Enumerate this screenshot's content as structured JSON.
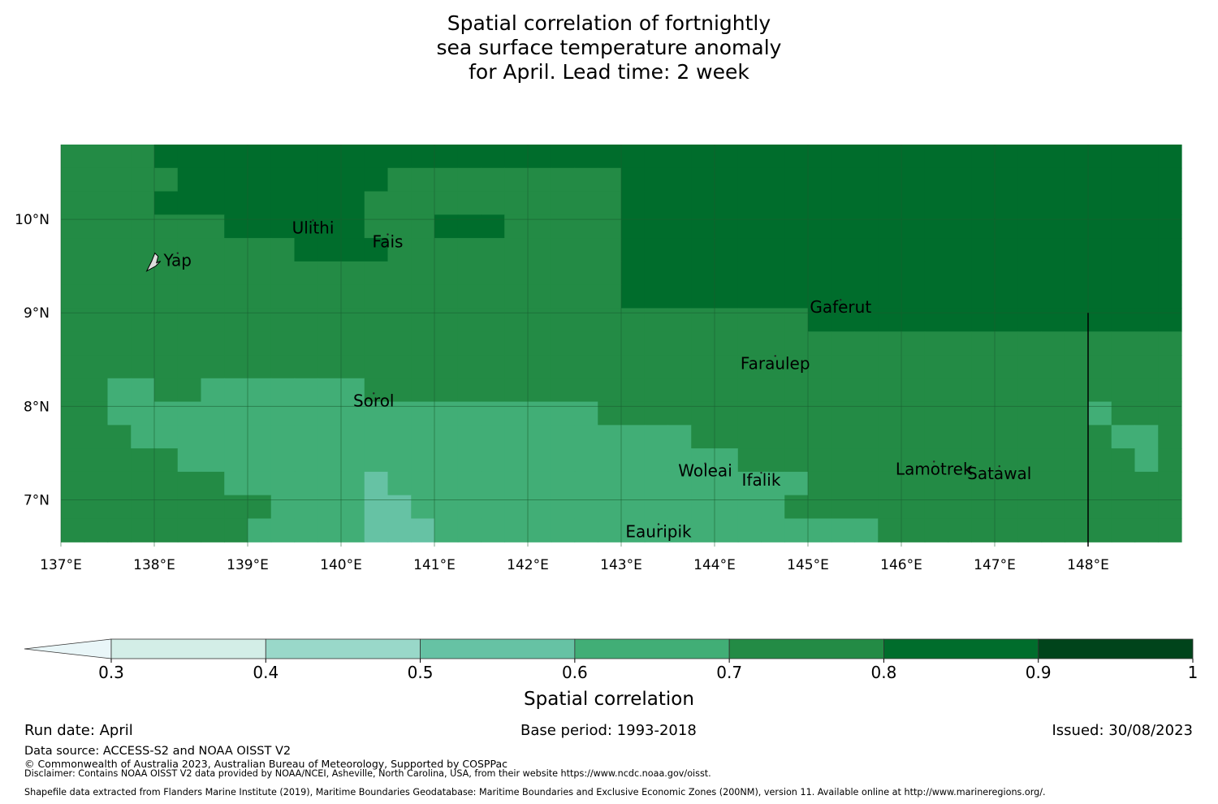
{
  "title": {
    "lines": [
      "Spatial correlation of fortnightly",
      "sea surface temperature anomaly",
      "for April. Lead time: 2 week"
    ]
  },
  "map": {
    "lon_range": [
      137.0,
      149.0
    ],
    "lat_range": [
      6.5,
      10.8
    ],
    "grid": "on",
    "x_ticks": [
      {
        "value": 137,
        "label": "137°E"
      },
      {
        "value": 138,
        "label": "138°E"
      },
      {
        "value": 139,
        "label": "139°E"
      },
      {
        "value": 140,
        "label": "140°E"
      },
      {
        "value": 141,
        "label": "141°E"
      },
      {
        "value": 142,
        "label": "142°E"
      },
      {
        "value": 143,
        "label": "143°E"
      },
      {
        "value": 144,
        "label": "144°E"
      },
      {
        "value": 145,
        "label": "145°E"
      },
      {
        "value": 146,
        "label": "146°E"
      },
      {
        "value": 147,
        "label": "147°E"
      },
      {
        "value": 148,
        "label": "148°E"
      }
    ],
    "y_ticks": [
      {
        "value": 10,
        "label": "10°N"
      },
      {
        "value": 9,
        "label": "9°N"
      },
      {
        "value": 8,
        "label": "8°N"
      },
      {
        "value": 7,
        "label": "7°N"
      }
    ],
    "islands": [
      {
        "name": "Yap",
        "lon": 138.25,
        "lat": 9.5
      },
      {
        "name": "Ulithi",
        "lon": 139.7,
        "lat": 9.85
      },
      {
        "name": "Fais",
        "lon": 140.5,
        "lat": 9.7
      },
      {
        "name": "Gaferut",
        "lon": 145.35,
        "lat": 9.0
      },
      {
        "name": "Faraulep",
        "lon": 144.65,
        "lat": 8.4
      },
      {
        "name": "Sorol",
        "lon": 140.35,
        "lat": 8.0
      },
      {
        "name": "Woleai",
        "lon": 143.9,
        "lat": 7.25
      },
      {
        "name": "Ifalik",
        "lon": 144.5,
        "lat": 7.15
      },
      {
        "name": "Lamotrek",
        "lon": 146.35,
        "lat": 7.27
      },
      {
        "name": "Satawal",
        "lon": 147.05,
        "lat": 7.22
      },
      {
        "name": "Eauripik",
        "lon": 143.4,
        "lat": 6.6
      }
    ],
    "boundary_line_lon": 148.0,
    "boundary_line_lat_range": [
      6.5,
      9.0
    ]
  },
  "chart_data": {
    "type": "heatmap",
    "description_units": "spatial correlation",
    "grid_cell_deg": 0.25,
    "lon_start": 137.0,
    "lat_top": 10.8,
    "ncols": 48,
    "nrows": 17,
    "bin_edges": [
      0.3,
      0.4,
      0.5,
      0.6,
      0.7,
      0.8,
      0.9,
      1.0
    ],
    "bin_colors": [
      "#d3eee7",
      "#99d8c9",
      "#66c2a4",
      "#41ae76",
      "#238b45",
      "#006d2c",
      "#00441b"
    ],
    "under_color": "#e9f6f8",
    "values_by_row_top_to_bottom": [
      [
        0.75,
        0.75,
        0.75,
        0.75,
        0.85,
        0.85,
        0.85,
        0.85,
        0.85,
        0.85,
        0.85,
        0.85,
        0.85,
        0.85,
        0.85,
        0.85,
        0.85,
        0.85,
        0.85,
        0.85,
        0.85,
        0.85,
        0.85,
        0.85,
        0.85,
        0.85,
        0.85,
        0.85,
        0.85,
        0.85,
        0.85,
        0.85,
        0.85,
        0.85,
        0.85,
        0.85,
        0.85,
        0.85,
        0.85,
        0.85,
        0.85,
        0.85,
        0.85,
        0.85,
        0.85,
        0.85,
        0.85,
        0.85
      ],
      [
        0.75,
        0.75,
        0.75,
        0.75,
        0.75,
        0.85,
        0.85,
        0.85,
        0.85,
        0.85,
        0.85,
        0.85,
        0.85,
        0.85,
        0.75,
        0.75,
        0.75,
        0.75,
        0.75,
        0.75,
        0.75,
        0.75,
        0.75,
        0.75,
        0.85,
        0.85,
        0.85,
        0.85,
        0.85,
        0.85,
        0.85,
        0.85,
        0.85,
        0.85,
        0.85,
        0.85,
        0.85,
        0.85,
        0.85,
        0.85,
        0.85,
        0.85,
        0.85,
        0.85,
        0.85,
        0.85,
        0.85,
        0.85
      ],
      [
        0.75,
        0.75,
        0.75,
        0.75,
        0.85,
        0.85,
        0.85,
        0.85,
        0.85,
        0.85,
        0.85,
        0.85,
        0.85,
        0.75,
        0.75,
        0.75,
        0.75,
        0.75,
        0.75,
        0.75,
        0.75,
        0.75,
        0.75,
        0.75,
        0.85,
        0.85,
        0.85,
        0.85,
        0.85,
        0.85,
        0.85,
        0.85,
        0.85,
        0.85,
        0.85,
        0.85,
        0.85,
        0.85,
        0.85,
        0.85,
        0.85,
        0.85,
        0.85,
        0.85,
        0.85,
        0.85,
        0.85,
        0.85
      ],
      [
        0.75,
        0.75,
        0.75,
        0.75,
        0.75,
        0.75,
        0.75,
        0.75,
        0.75,
        0.75,
        0.75,
        0.75,
        0.75,
        0.75,
        0.75,
        0.75,
        0.75,
        0.75,
        0.75,
        0.75,
        0.75,
        0.75,
        0.75,
        0.75,
        0.85,
        0.85,
        0.85,
        0.85,
        0.85,
        0.85,
        0.85,
        0.85,
        0.85,
        0.85,
        0.85,
        0.85,
        0.85,
        0.85,
        0.85,
        0.85,
        0.85,
        0.85,
        0.85,
        0.85,
        0.85,
        0.85,
        0.85,
        0.85
      ],
      [
        0.75,
        0.75,
        0.75,
        0.75,
        0.75,
        0.75,
        0.75,
        0.75,
        0.75,
        0.75,
        0.75,
        0.75,
        0.75,
        0.75,
        0.75,
        0.75,
        0.75,
        0.75,
        0.75,
        0.75,
        0.75,
        0.75,
        0.75,
        0.75,
        0.85,
        0.85,
        0.85,
        0.85,
        0.85,
        0.85,
        0.85,
        0.85,
        0.85,
        0.85,
        0.85,
        0.85,
        0.85,
        0.85,
        0.85,
        0.85,
        0.85,
        0.85,
        0.85,
        0.85,
        0.85,
        0.85,
        0.85,
        0.85
      ],
      [
        0.75,
        0.75,
        0.75,
        0.75,
        0.75,
        0.75,
        0.75,
        0.75,
        0.75,
        0.75,
        0.75,
        0.75,
        0.75,
        0.75,
        0.75,
        0.75,
        0.75,
        0.75,
        0.75,
        0.75,
        0.75,
        0.75,
        0.75,
        0.75,
        0.85,
        0.85,
        0.85,
        0.85,
        0.85,
        0.85,
        0.85,
        0.85,
        0.85,
        0.85,
        0.85,
        0.85,
        0.85,
        0.85,
        0.85,
        0.85,
        0.85,
        0.85,
        0.85,
        0.85,
        0.85,
        0.85,
        0.85,
        0.85
      ],
      [
        0.75,
        0.75,
        0.75,
        0.75,
        0.75,
        0.75,
        0.75,
        0.75,
        0.75,
        0.75,
        0.75,
        0.75,
        0.75,
        0.75,
        0.75,
        0.75,
        0.75,
        0.75,
        0.75,
        0.75,
        0.75,
        0.75,
        0.75,
        0.75,
        0.85,
        0.85,
        0.85,
        0.85,
        0.85,
        0.85,
        0.85,
        0.85,
        0.85,
        0.85,
        0.85,
        0.85,
        0.85,
        0.85,
        0.85,
        0.85,
        0.85,
        0.85,
        0.85,
        0.85,
        0.85,
        0.85,
        0.85,
        0.85
      ],
      [
        0.75,
        0.75,
        0.75,
        0.75,
        0.75,
        0.75,
        0.75,
        0.75,
        0.75,
        0.75,
        0.75,
        0.75,
        0.75,
        0.75,
        0.75,
        0.75,
        0.75,
        0.75,
        0.75,
        0.75,
        0.75,
        0.75,
        0.75,
        0.75,
        0.75,
        0.75,
        0.75,
        0.75,
        0.75,
        0.75,
        0.75,
        0.75,
        0.85,
        0.85,
        0.85,
        0.85,
        0.85,
        0.85,
        0.85,
        0.85,
        0.85,
        0.85,
        0.85,
        0.85,
        0.85,
        0.85,
        0.85,
        0.85
      ],
      [
        0.75,
        0.75,
        0.75,
        0.75,
        0.75,
        0.75,
        0.75,
        0.75,
        0.75,
        0.75,
        0.75,
        0.75,
        0.75,
        0.75,
        0.75,
        0.75,
        0.75,
        0.75,
        0.75,
        0.75,
        0.75,
        0.75,
        0.75,
        0.75,
        0.75,
        0.75,
        0.75,
        0.75,
        0.75,
        0.75,
        0.75,
        0.75,
        0.75,
        0.75,
        0.75,
        0.75,
        0.75,
        0.75,
        0.75,
        0.75,
        0.75,
        0.75,
        0.75,
        0.75,
        0.75,
        0.75,
        0.75,
        0.75
      ],
      [
        0.75,
        0.75,
        0.75,
        0.75,
        0.75,
        0.75,
        0.75,
        0.75,
        0.75,
        0.75,
        0.75,
        0.75,
        0.75,
        0.75,
        0.75,
        0.75,
        0.75,
        0.75,
        0.75,
        0.75,
        0.75,
        0.75,
        0.75,
        0.75,
        0.75,
        0.75,
        0.75,
        0.75,
        0.75,
        0.75,
        0.75,
        0.75,
        0.75,
        0.75,
        0.75,
        0.75,
        0.75,
        0.75,
        0.75,
        0.75,
        0.75,
        0.75,
        0.75,
        0.75,
        0.75,
        0.75,
        0.75,
        0.75
      ],
      [
        0.75,
        0.75,
        0.65,
        0.65,
        0.75,
        0.75,
        0.65,
        0.65,
        0.65,
        0.65,
        0.65,
        0.65,
        0.65,
        0.75,
        0.75,
        0.75,
        0.75,
        0.75,
        0.75,
        0.75,
        0.75,
        0.75,
        0.75,
        0.75,
        0.75,
        0.75,
        0.75,
        0.75,
        0.75,
        0.75,
        0.75,
        0.75,
        0.75,
        0.75,
        0.75,
        0.75,
        0.75,
        0.75,
        0.75,
        0.75,
        0.75,
        0.75,
        0.75,
        0.75,
        0.75,
        0.75,
        0.75,
        0.75
      ],
      [
        0.75,
        0.75,
        0.65,
        0.65,
        0.65,
        0.65,
        0.65,
        0.65,
        0.65,
        0.65,
        0.65,
        0.65,
        0.65,
        0.65,
        0.65,
        0.65,
        0.65,
        0.65,
        0.65,
        0.65,
        0.65,
        0.65,
        0.65,
        0.75,
        0.75,
        0.75,
        0.75,
        0.75,
        0.75,
        0.75,
        0.75,
        0.75,
        0.75,
        0.75,
        0.75,
        0.75,
        0.75,
        0.75,
        0.75,
        0.75,
        0.75,
        0.75,
        0.75,
        0.75,
        0.65,
        0.75,
        0.75,
        0.75
      ],
      [
        0.75,
        0.75,
        0.75,
        0.65,
        0.65,
        0.65,
        0.65,
        0.65,
        0.65,
        0.65,
        0.65,
        0.65,
        0.65,
        0.65,
        0.65,
        0.65,
        0.65,
        0.65,
        0.65,
        0.65,
        0.65,
        0.65,
        0.65,
        0.65,
        0.65,
        0.65,
        0.65,
        0.75,
        0.75,
        0.75,
        0.75,
        0.75,
        0.75,
        0.75,
        0.75,
        0.75,
        0.75,
        0.75,
        0.75,
        0.75,
        0.75,
        0.75,
        0.75,
        0.75,
        0.75,
        0.65,
        0.65,
        0.75
      ],
      [
        0.75,
        0.75,
        0.75,
        0.75,
        0.75,
        0.65,
        0.65,
        0.65,
        0.65,
        0.65,
        0.65,
        0.65,
        0.65,
        0.65,
        0.65,
        0.65,
        0.65,
        0.65,
        0.65,
        0.65,
        0.65,
        0.65,
        0.65,
        0.65,
        0.65,
        0.65,
        0.65,
        0.65,
        0.65,
        0.75,
        0.75,
        0.75,
        0.75,
        0.75,
        0.75,
        0.75,
        0.75,
        0.75,
        0.75,
        0.75,
        0.75,
        0.75,
        0.75,
        0.75,
        0.75,
        0.75,
        0.65,
        0.75
      ],
      [
        0.75,
        0.75,
        0.75,
        0.75,
        0.75,
        0.75,
        0.75,
        0.65,
        0.65,
        0.65,
        0.65,
        0.65,
        0.65,
        0.55,
        0.65,
        0.65,
        0.65,
        0.65,
        0.65,
        0.65,
        0.65,
        0.65,
        0.65,
        0.65,
        0.65,
        0.65,
        0.65,
        0.65,
        0.65,
        0.65,
        0.65,
        0.65,
        0.75,
        0.75,
        0.75,
        0.75,
        0.75,
        0.75,
        0.75,
        0.75,
        0.75,
        0.75,
        0.75,
        0.75,
        0.75,
        0.75,
        0.75,
        0.75
      ],
      [
        0.75,
        0.75,
        0.75,
        0.75,
        0.75,
        0.75,
        0.75,
        0.75,
        0.75,
        0.65,
        0.65,
        0.65,
        0.65,
        0.55,
        0.55,
        0.65,
        0.65,
        0.65,
        0.65,
        0.65,
        0.65,
        0.65,
        0.65,
        0.65,
        0.65,
        0.65,
        0.65,
        0.65,
        0.65,
        0.65,
        0.65,
        0.75,
        0.75,
        0.75,
        0.75,
        0.75,
        0.75,
        0.75,
        0.75,
        0.75,
        0.75,
        0.75,
        0.75,
        0.75,
        0.75,
        0.75,
        0.75,
        0.75
      ],
      [
        0.75,
        0.75,
        0.75,
        0.75,
        0.75,
        0.75,
        0.75,
        0.75,
        0.65,
        0.65,
        0.65,
        0.65,
        0.65,
        0.55,
        0.55,
        0.55,
        0.65,
        0.65,
        0.65,
        0.65,
        0.65,
        0.65,
        0.65,
        0.65,
        0.65,
        0.65,
        0.65,
        0.65,
        0.65,
        0.65,
        0.65,
        0.65,
        0.65,
        0.65,
        0.65,
        0.75,
        0.75,
        0.75,
        0.75,
        0.75,
        0.75,
        0.75,
        0.75,
        0.75,
        0.75,
        0.75,
        0.75,
        0.75
      ]
    ],
    "overrides_dark_upper": [
      {
        "col": 16,
        "row": 3,
        "v": 0.85
      },
      {
        "col": 17,
        "row": 3,
        "v": 0.85
      },
      {
        "col": 18,
        "row": 3,
        "v": 0.85
      },
      {
        "col": 10,
        "row": 4,
        "v": 0.85
      },
      {
        "col": 11,
        "row": 4,
        "v": 0.85
      },
      {
        "col": 12,
        "row": 4,
        "v": 0.85
      },
      {
        "col": 13,
        "row": 4,
        "v": 0.85
      },
      {
        "col": 7,
        "row": 3,
        "v": 0.85
      },
      {
        "col": 8,
        "row": 3,
        "v": 0.85
      },
      {
        "col": 9,
        "row": 3,
        "v": 0.85
      },
      {
        "col": 10,
        "row": 3,
        "v": 0.85
      },
      {
        "col": 11,
        "row": 3,
        "v": 0.85
      },
      {
        "col": 12,
        "row": 3,
        "v": 0.85
      },
      {
        "col": 6,
        "row": 2,
        "v": 0.85
      }
    ],
    "colorbar": {
      "ticks": [
        "0.3",
        "0.4",
        "0.5",
        "0.6",
        "0.7",
        "0.8",
        "0.9",
        "1"
      ],
      "extend": "min",
      "label": "Spatial correlation"
    }
  },
  "footer": {
    "run_date": "Run date: April",
    "base_period": "Base period: 1993-2018",
    "issued": "Issued: 30/08/2023",
    "data_source": "Data source: ACCESS-S2 and NOAA OISST V2",
    "copyright": "© Commonwealth of Australia 2023, Australian Bureau of Meteorology, Supported by COSPPac",
    "disclaimer": "Disclaimer: Contains NOAA OISST V2 data provided by NOAA/NCEI, Asheville, North Carolina, USA, from their website https://www.ncdc.noaa.gov/oisst.",
    "shapefile": "Shapefile data extracted from Flanders Marine Institute (2019), Maritime Boundaries Geodatabase: Maritime Boundaries and Exclusive Economic Zones (200NM), version 11. Available online at http://www.marineregions.org/."
  }
}
